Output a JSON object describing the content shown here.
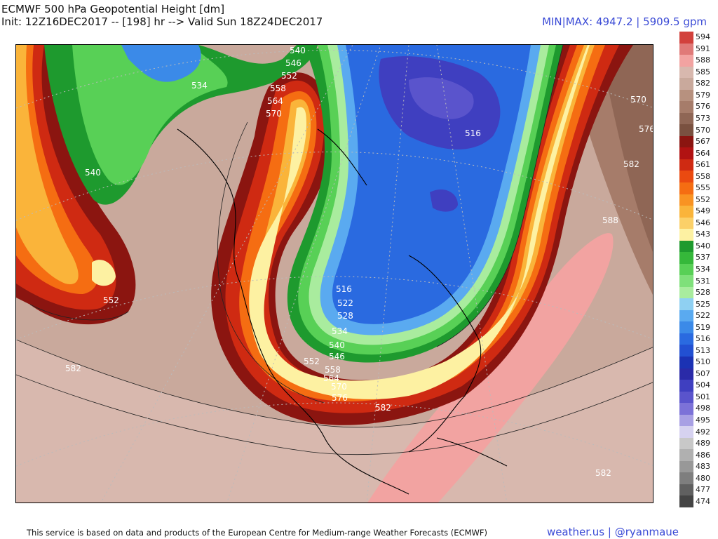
{
  "header": {
    "title": "ECMWF 500 hPa Geopotential Height [dm]",
    "subtitle": "Init: 12Z16DEC2017 -- [198] hr --> Valid Sun 18Z24DEC2017",
    "minmax": "MIN|MAX: 4947.2 | 5909.5 gpm"
  },
  "colorbar": {
    "levels": [
      "594",
      "591",
      "588",
      "585",
      "582",
      "579",
      "576",
      "573",
      "570",
      "567",
      "564",
      "561",
      "558",
      "555",
      "552",
      "549",
      "546",
      "543",
      "540",
      "537",
      "534",
      "531",
      "528",
      "525",
      "522",
      "519",
      "516",
      "513",
      "510",
      "507",
      "504",
      "501",
      "498",
      "495",
      "492",
      "489",
      "486",
      "483",
      "480",
      "477",
      "474"
    ],
    "colors": [
      "#d2413c",
      "#e07a78",
      "#f2a3a1",
      "#d8b8ae",
      "#c9a99c",
      "#b7917f",
      "#a67c6a",
      "#8f6655",
      "#7a5140",
      "#8b1510",
      "#b11212",
      "#cf2a12",
      "#ea4a10",
      "#f56d12",
      "#f99322",
      "#fab43a",
      "#fbd068",
      "#fdf1a2",
      "#1e9a2e",
      "#35b83a",
      "#58d056",
      "#7fe07a",
      "#a9ec9e",
      "#8fd0f2",
      "#5aaaf0",
      "#3b8ae8",
      "#2a6ae0",
      "#2250d2",
      "#1b32b4",
      "#2a2aa8",
      "#3f3fc0",
      "#5a54cc",
      "#7c72d8",
      "#a8a0e4",
      "#d6d2f0",
      "#c8c8c8",
      "#b0b0b0",
      "#989898",
      "#7e7e7e",
      "#606060",
      "#444444"
    ]
  },
  "contour_labels": [
    {
      "text": "540",
      "c": "#fff"
    },
    {
      "text": "546",
      "c": "#fff"
    },
    {
      "text": "552",
      "c": "#fff"
    },
    {
      "text": "558",
      "c": "#fff"
    },
    {
      "text": "564",
      "c": "#fff"
    },
    {
      "text": "570",
      "c": "#fff"
    },
    {
      "text": "534",
      "c": "#fff"
    },
    {
      "text": "540",
      "c": "#fff"
    },
    {
      "text": "552",
      "c": "#fff"
    },
    {
      "text": "516",
      "c": "#fff"
    },
    {
      "text": "570",
      "c": "#fff"
    },
    {
      "text": "576",
      "c": "#fff"
    },
    {
      "text": "582",
      "c": "#fff"
    },
    {
      "text": "588",
      "c": "#fff"
    },
    {
      "text": "516",
      "c": "#fff"
    },
    {
      "text": "522",
      "c": "#fff"
    },
    {
      "text": "528",
      "c": "#fff"
    },
    {
      "text": "534",
      "c": "#fff"
    },
    {
      "text": "540",
      "c": "#fff"
    },
    {
      "text": "546",
      "c": "#fff"
    },
    {
      "text": "552",
      "c": "#fff"
    },
    {
      "text": "558",
      "c": "#fff"
    },
    {
      "text": "564",
      "c": "#fff"
    },
    {
      "text": "570",
      "c": "#fff"
    },
    {
      "text": "576",
      "c": "#fff"
    },
    {
      "text": "582",
      "c": "#fff"
    },
    {
      "text": "582",
      "c": "#fff"
    },
    {
      "text": "582",
      "c": "#fff"
    }
  ],
  "footer": {
    "credit": "This service is based on data and products of the European Centre for Medium-range Weather Forecasts (ECMWF)",
    "brand": "weather.us | @ryanmaue"
  }
}
